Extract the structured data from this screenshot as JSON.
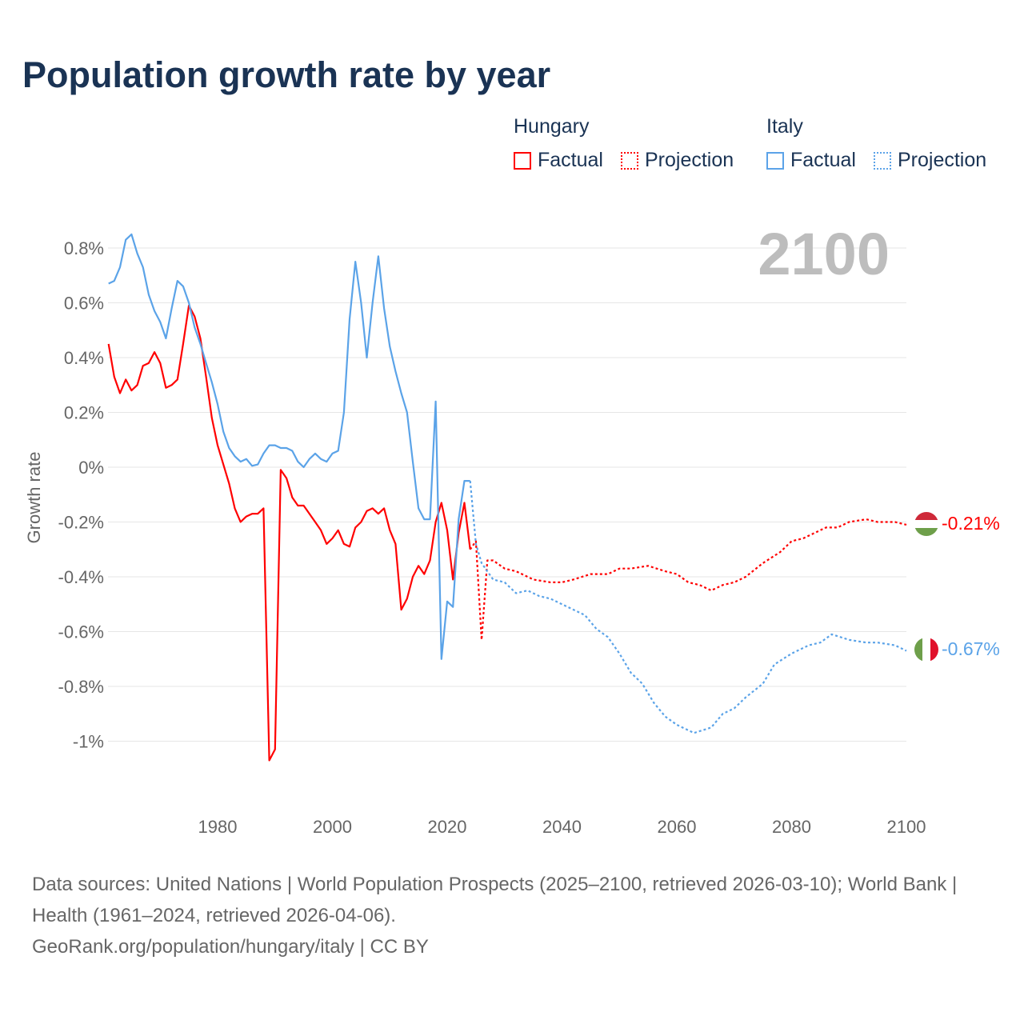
{
  "title": "Population growth rate by year",
  "legend": {
    "groups": [
      {
        "name": "Hungary",
        "items": [
          "Factual",
          "Projection"
        ],
        "color": "#ff0000"
      },
      {
        "name": "Italy",
        "items": [
          "Factual",
          "Projection"
        ],
        "color": "#5ba3e8"
      }
    ]
  },
  "year_label": "2100",
  "end_labels": {
    "hungary": "-0.21%",
    "italy": "-0.67%"
  },
  "footer": {
    "sources": "Data sources: United Nations | World Population Prospects (2025–2100, retrieved 2026-03-10); World Bank | Health (1961–2024, retrieved 2026-04-06).",
    "link": "GeoRank.org/population/hungary/italy | CC BY"
  },
  "chart_data": {
    "type": "line",
    "title": "Population growth rate by year",
    "ylabel": "Growth rate",
    "xlabel": "",
    "xticks": [
      1980,
      2000,
      2020,
      2040,
      2060,
      2080,
      2100
    ],
    "xtick_labels": [
      "1980",
      "2000",
      "2020",
      "2040",
      "2060",
      "2080",
      "2100"
    ],
    "yticks": [
      0.8,
      0.6,
      0.4,
      0.2,
      0,
      -0.2,
      -0.4,
      -0.6,
      -0.8,
      -1
    ],
    "ytick_labels": [
      "0.8%",
      "0.6%",
      "0.4%",
      "0.2%",
      "0%",
      "-0.2%",
      "-0.4%",
      "-0.6%",
      "-0.8%",
      "-1%"
    ],
    "xlim": [
      1961,
      2100
    ],
    "ylim": [
      -1.2,
      0.9
    ],
    "grid": true,
    "legend_position": "top-right",
    "series": [
      {
        "name": "Hungary Factual",
        "color": "#ff0000",
        "dashed": false,
        "x_start": 1961,
        "values": [
          0.45,
          0.33,
          0.27,
          0.32,
          0.28,
          0.3,
          0.37,
          0.38,
          0.42,
          0.38,
          0.29,
          0.3,
          0.32,
          0.45,
          0.59,
          0.55,
          0.47,
          0.33,
          0.18,
          0.08,
          0.01,
          -0.06,
          -0.15,
          -0.2,
          -0.18,
          -0.17,
          -0.17,
          -0.15,
          -1.07,
          -1.03,
          -0.01,
          -0.04,
          -0.11,
          -0.14,
          -0.14,
          -0.17,
          -0.2,
          -0.23,
          -0.28,
          -0.26,
          -0.23,
          -0.28,
          -0.29,
          -0.22,
          -0.2,
          -0.16,
          -0.15,
          -0.17,
          -0.15,
          -0.23,
          -0.28,
          -0.52,
          -0.48,
          -0.4,
          -0.36,
          -0.39,
          -0.34,
          -0.2,
          -0.13,
          -0.23,
          -0.41,
          -0.24,
          -0.13,
          -0.3
        ]
      },
      {
        "name": "Hungary Projection",
        "color": "#ff0000",
        "dashed": true,
        "x": [
          2024,
          2025,
          2026,
          2027,
          2028,
          2030,
          2032,
          2035,
          2038,
          2040,
          2042,
          2045,
          2048,
          2050,
          2052,
          2055,
          2058,
          2060,
          2062,
          2064,
          2066,
          2068,
          2070,
          2072,
          2075,
          2078,
          2080,
          2082,
          2084,
          2086,
          2088,
          2090,
          2093,
          2095,
          2098,
          2100
        ],
        "values": [
          -0.3,
          -0.27,
          -0.63,
          -0.34,
          -0.34,
          -0.37,
          -0.38,
          -0.41,
          -0.42,
          -0.42,
          -0.41,
          -0.39,
          -0.39,
          -0.37,
          -0.37,
          -0.36,
          -0.38,
          -0.39,
          -0.42,
          -0.43,
          -0.45,
          -0.43,
          -0.42,
          -0.4,
          -0.35,
          -0.31,
          -0.27,
          -0.26,
          -0.24,
          -0.22,
          -0.22,
          -0.2,
          -0.19,
          -0.2,
          -0.2,
          -0.21
        ]
      },
      {
        "name": "Italy Factual",
        "color": "#5ba3e8",
        "dashed": false,
        "x_start": 1961,
        "values": [
          0.67,
          0.68,
          0.73,
          0.83,
          0.85,
          0.78,
          0.73,
          0.63,
          0.57,
          0.53,
          0.47,
          0.58,
          0.68,
          0.66,
          0.6,
          0.51,
          0.45,
          0.38,
          0.31,
          0.23,
          0.13,
          0.07,
          0.04,
          0.02,
          0.03,
          0.005,
          0.01,
          0.05,
          0.08,
          0.08,
          0.07,
          0.07,
          0.06,
          0.02,
          0.0,
          0.03,
          0.05,
          0.03,
          0.02,
          0.05,
          0.06,
          0.2,
          0.54,
          0.75,
          0.6,
          0.4,
          0.6,
          0.77,
          0.58,
          0.44,
          0.35,
          0.27,
          0.2,
          0.02,
          -0.15,
          -0.19,
          -0.19,
          0.24,
          -0.7,
          -0.49,
          -0.51,
          -0.19,
          -0.05,
          -0.05
        ]
      },
      {
        "name": "Italy Projection",
        "color": "#5ba3e8",
        "dashed": true,
        "x": [
          2024,
          2025,
          2026,
          2027,
          2028,
          2030,
          2032,
          2034,
          2036,
          2038,
          2040,
          2042,
          2044,
          2046,
          2048,
          2050,
          2052,
          2054,
          2056,
          2058,
          2060,
          2063,
          2066,
          2068,
          2070,
          2072,
          2075,
          2077,
          2080,
          2083,
          2085,
          2087,
          2090,
          2093,
          2095,
          2098,
          2100
        ],
        "values": [
          -0.05,
          -0.28,
          -0.35,
          -0.38,
          -0.41,
          -0.42,
          -0.46,
          -0.45,
          -0.47,
          -0.48,
          -0.5,
          -0.52,
          -0.54,
          -0.59,
          -0.62,
          -0.68,
          -0.75,
          -0.79,
          -0.86,
          -0.91,
          -0.94,
          -0.97,
          -0.95,
          -0.9,
          -0.88,
          -0.84,
          -0.79,
          -0.72,
          -0.68,
          -0.65,
          -0.64,
          -0.61,
          -0.63,
          -0.64,
          -0.64,
          -0.65,
          -0.67
        ]
      }
    ]
  }
}
